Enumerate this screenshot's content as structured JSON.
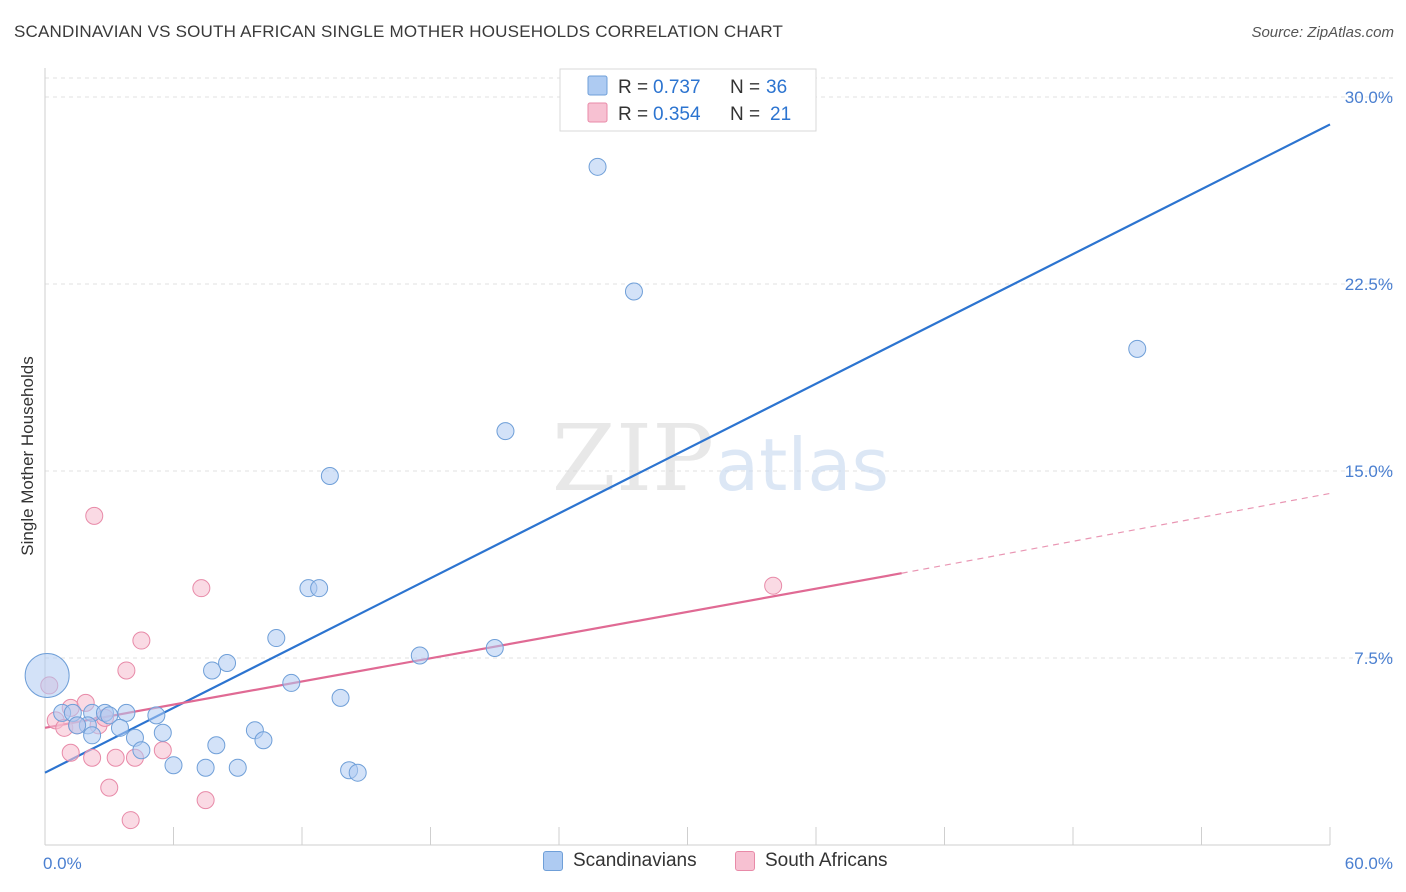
{
  "title": "SCANDINAVIAN VS SOUTH AFRICAN SINGLE MOTHER HOUSEHOLDS CORRELATION CHART",
  "source": "Source: ZipAtlas.com",
  "watermark": {
    "zip": "ZIP",
    "atlas": "atlas"
  },
  "colors": {
    "blue_fill": "#aecbf2",
    "blue_stroke": "#6f9fd8",
    "blue_line": "#2c74d0",
    "pink_fill": "#f7c1d2",
    "pink_stroke": "#e88aa8",
    "pink_line": "#e06a94",
    "tick_label": "#4a7fd0",
    "grid": "#e2e2e2"
  },
  "legend": {
    "rows": [
      {
        "r_label": "R = ",
        "r_value": "0.737",
        "n_label": "N = ",
        "n_value": "36",
        "color": "blue"
      },
      {
        "r_label": "R = ",
        "r_value": "0.354",
        "n_label": "N = ",
        "n_value": "21",
        "color": "pink"
      }
    ]
  },
  "bottom_legend": {
    "scandinavians": "Scandinavians",
    "south_africans": "South Africans"
  },
  "chart_data": {
    "type": "scatter",
    "title": "SCANDINAVIAN VS SOUTH AFRICAN SINGLE MOTHER HOUSEHOLDS CORRELATION CHART",
    "xlabel": "",
    "ylabel": "Single Mother Households",
    "xlim": [
      0,
      60
    ],
    "ylim": [
      0,
      30
    ],
    "x_tick_labels": [
      "0.0%",
      "60.0%"
    ],
    "y_ticks": [
      7.5,
      15.0,
      22.5,
      30.0
    ],
    "y_tick_labels": [
      "7.5%",
      "15.0%",
      "22.5%",
      "30.0%"
    ],
    "grid": true,
    "legend_position": "top-center",
    "series": [
      {
        "name": "Scandinavians",
        "color": "#aecbf2",
        "points": [
          {
            "x": 0.1,
            "y": 6.8,
            "big": true
          },
          {
            "x": 0.8,
            "y": 5.3
          },
          {
            "x": 1.3,
            "y": 5.3
          },
          {
            "x": 2.2,
            "y": 5.3
          },
          {
            "x": 2.0,
            "y": 4.8
          },
          {
            "x": 2.8,
            "y": 5.3
          },
          {
            "x": 3.0,
            "y": 5.2
          },
          {
            "x": 3.8,
            "y": 5.3
          },
          {
            "x": 4.2,
            "y": 4.3
          },
          {
            "x": 5.2,
            "y": 5.2
          },
          {
            "x": 5.5,
            "y": 4.5
          },
          {
            "x": 3.5,
            "y": 4.7
          },
          {
            "x": 1.5,
            "y": 4.8
          },
          {
            "x": 2.2,
            "y": 4.4
          },
          {
            "x": 4.5,
            "y": 3.8
          },
          {
            "x": 6.0,
            "y": 3.2
          },
          {
            "x": 7.5,
            "y": 3.1
          },
          {
            "x": 8.0,
            "y": 4.0
          },
          {
            "x": 9.0,
            "y": 3.1
          },
          {
            "x": 9.8,
            "y": 4.6
          },
          {
            "x": 10.2,
            "y": 4.2
          },
          {
            "x": 7.8,
            "y": 7.0
          },
          {
            "x": 8.5,
            "y": 7.3
          },
          {
            "x": 10.8,
            "y": 8.3
          },
          {
            "x": 11.5,
            "y": 6.5
          },
          {
            "x": 12.3,
            "y": 10.3
          },
          {
            "x": 12.8,
            "y": 10.3
          },
          {
            "x": 13.3,
            "y": 14.8
          },
          {
            "x": 13.8,
            "y": 5.9
          },
          {
            "x": 14.2,
            "y": 3.0
          },
          {
            "x": 14.6,
            "y": 2.9
          },
          {
            "x": 17.5,
            "y": 7.6
          },
          {
            "x": 21.0,
            "y": 7.9
          },
          {
            "x": 21.5,
            "y": 16.6
          },
          {
            "x": 25.8,
            "y": 27.2
          },
          {
            "x": 27.5,
            "y": 22.2
          },
          {
            "x": 51.0,
            "y": 19.9
          }
        ],
        "trend": {
          "x": [
            0,
            60
          ],
          "y": [
            2.9,
            28.9
          ],
          "style": "solid"
        }
      },
      {
        "name": "South Africans",
        "color": "#f7c1d2",
        "points": [
          {
            "x": 0.2,
            "y": 6.4
          },
          {
            "x": 0.5,
            "y": 5.0
          },
          {
            "x": 0.9,
            "y": 4.7
          },
          {
            "x": 1.2,
            "y": 5.5
          },
          {
            "x": 1.5,
            "y": 4.8
          },
          {
            "x": 1.9,
            "y": 5.7
          },
          {
            "x": 2.5,
            "y": 4.8
          },
          {
            "x": 2.8,
            "y": 5.1
          },
          {
            "x": 1.2,
            "y": 3.7
          },
          {
            "x": 2.2,
            "y": 3.5
          },
          {
            "x": 3.3,
            "y": 3.5
          },
          {
            "x": 4.2,
            "y": 3.5
          },
          {
            "x": 5.5,
            "y": 3.8
          },
          {
            "x": 3.0,
            "y": 2.3
          },
          {
            "x": 4.0,
            "y": 1.0
          },
          {
            "x": 7.5,
            "y": 1.8
          },
          {
            "x": 2.3,
            "y": 13.2
          },
          {
            "x": 3.8,
            "y": 7.0
          },
          {
            "x": 4.5,
            "y": 8.2
          },
          {
            "x": 7.3,
            "y": 10.3
          },
          {
            "x": 34.0,
            "y": 10.4
          }
        ],
        "trend": {
          "x": [
            0,
            40
          ],
          "y": [
            4.7,
            10.9
          ],
          "style": "solid"
        },
        "trend_extension": {
          "x": [
            40,
            60
          ],
          "y": [
            10.9,
            14.1
          ],
          "style": "dashed"
        }
      }
    ]
  }
}
